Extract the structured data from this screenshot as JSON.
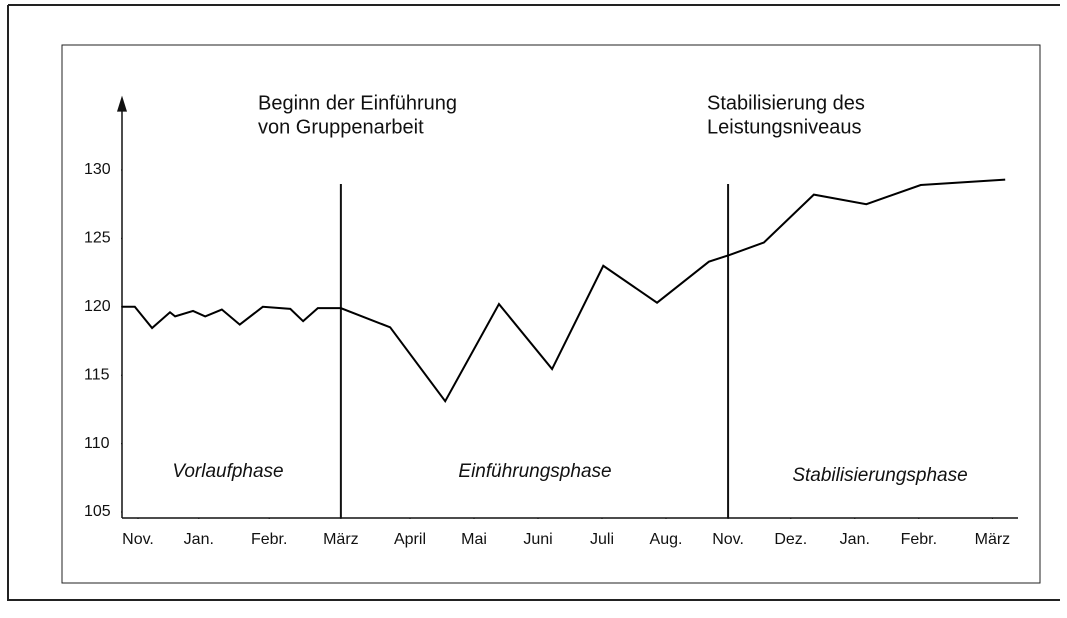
{
  "chart_data": {
    "type": "line",
    "annotations": [
      [
        "Beginn der Einführung",
        "von Gruppenarbeit"
      ],
      [
        "Stabilisierung des",
        "Leistungsniveaus"
      ]
    ],
    "phases": [
      "Vorlaufphase",
      "Einführungsphase",
      "Stabilisierungsphase"
    ],
    "x": [
      0,
      0.2,
      0.47,
      0.75,
      0.83,
      1.11,
      1.3,
      1.56,
      1.84,
      2.2,
      2.63,
      2.83,
      3.06,
      3.42,
      4.19,
      5.05,
      5.89,
      6.72,
      7.52,
      8.36,
      9.17,
      9.5,
      10.03,
      10.81,
      11.63,
      12.48,
      13.8
    ],
    "values": [
      120.0,
      120.0,
      118.45,
      119.6,
      119.3,
      119.7,
      119.3,
      119.8,
      118.7,
      120.0,
      119.85,
      118.95,
      119.9,
      119.9,
      118.5,
      113.1,
      120.2,
      115.45,
      123.0,
      120.3,
      123.3,
      123.8,
      124.7,
      128.2,
      127.5,
      128.9,
      129.3
    ],
    "color": "#000000",
    "xlim": [
      0,
      14
    ],
    "xticks": [
      {
        "value": 0.25,
        "label": "Nov."
      },
      {
        "value": 1.2,
        "label": "Jan."
      },
      {
        "value": 2.3,
        "label": "Febr."
      },
      {
        "value": 3.42,
        "label": "März"
      },
      {
        "value": 4.5,
        "label": "April"
      },
      {
        "value": 5.5,
        "label": "Mai"
      },
      {
        "value": 6.5,
        "label": "Juni"
      },
      {
        "value": 7.5,
        "label": "Juli"
      },
      {
        "value": 8.5,
        "label": "Aug."
      },
      {
        "value": 9.47,
        "label": "Nov."
      },
      {
        "value": 10.45,
        "label": "Dez."
      },
      {
        "value": 11.45,
        "label": "Jan."
      },
      {
        "value": 12.45,
        "label": "Febr."
      },
      {
        "value": 13.6,
        "label": "März"
      }
    ],
    "ylim": [
      105,
      135
    ],
    "yticks": [
      105,
      110,
      115,
      120,
      125,
      130
    ]
  }
}
